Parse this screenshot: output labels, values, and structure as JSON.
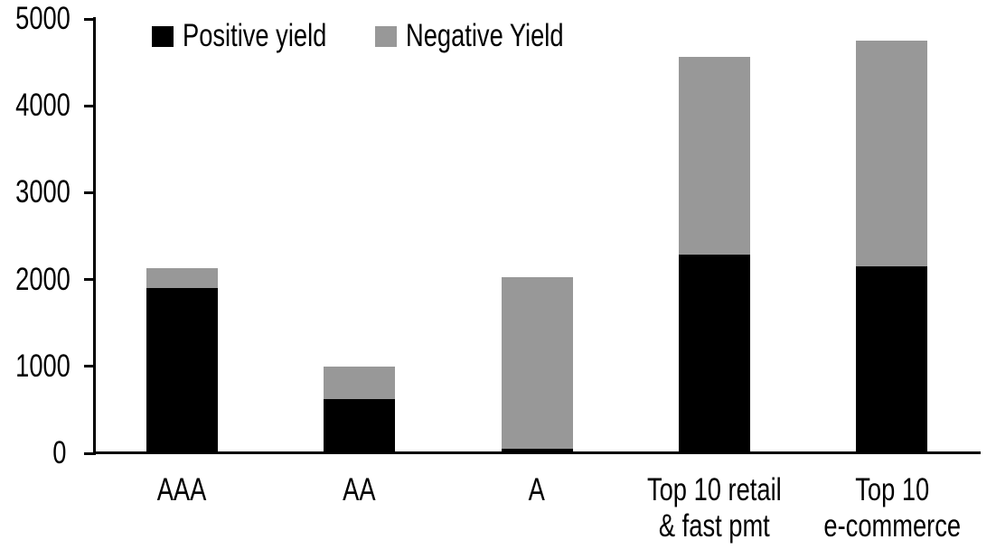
{
  "chart_data": {
    "type": "bar",
    "stacked": true,
    "title": "",
    "categories": [
      "AAA",
      "AA",
      "A",
      "Top 10 retail & fast pmt",
      "Top 10 e-commerce"
    ],
    "category_label_lines": [
      [
        "AAA"
      ],
      [
        "AA"
      ],
      [
        "A"
      ],
      [
        "Top 10 retail",
        "& fast pmt"
      ],
      [
        "Top 10",
        "e-commerce"
      ]
    ],
    "series": [
      {
        "name": "Positive yield",
        "color": "#000000",
        "values": [
          1900,
          620,
          50,
          2290,
          2150
        ]
      },
      {
        "name": "Negative Yield",
        "color": "#989898",
        "values": [
          230,
          380,
          1980,
          2270,
          2600
        ]
      }
    ],
    "ylim": [
      0,
      5000
    ],
    "yticks": [
      0,
      1000,
      2000,
      3000,
      4000,
      5000
    ],
    "xlabel": "",
    "ylabel": "",
    "grid": false,
    "legend_position": "top",
    "axis_color": "#000000",
    "background_color": "#ffffff"
  }
}
